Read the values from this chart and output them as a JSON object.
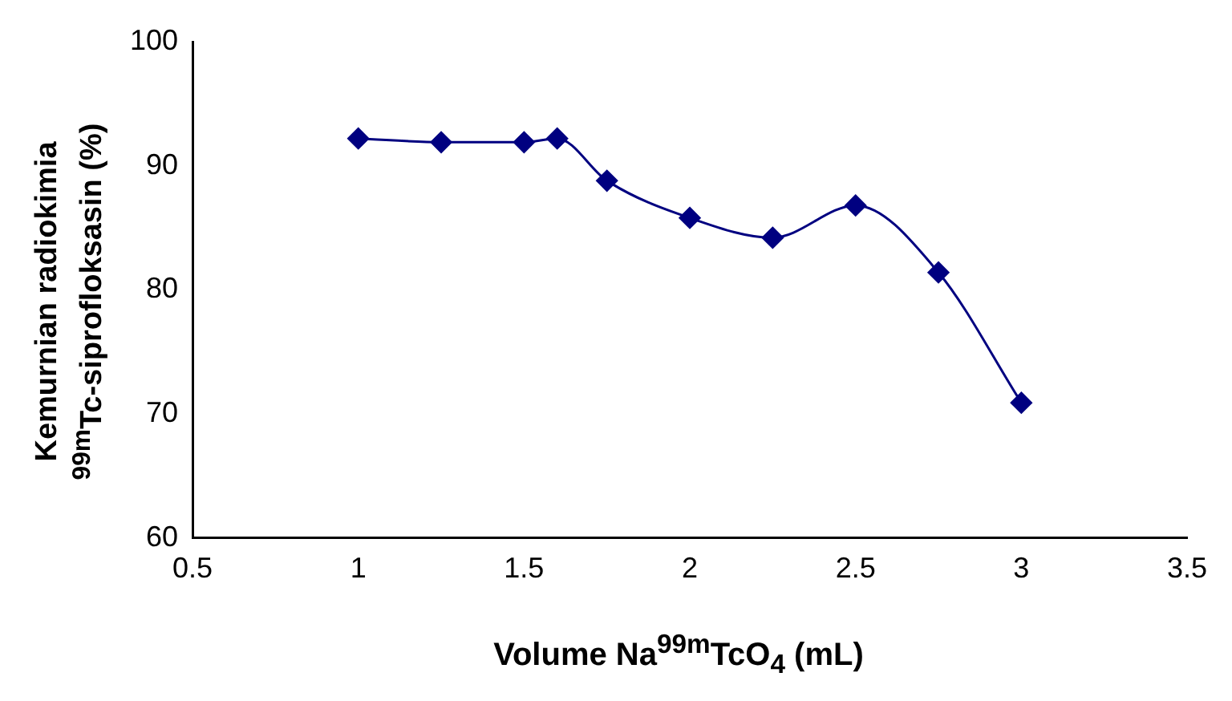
{
  "chart_data": {
    "type": "line",
    "xlabel": "Volume Na$^{99m}$TcO$_{4}$ (mL)",
    "ylabel": "Kemurnian radiokimia\n$^{99m}$Tc-siprofloksasin (%)",
    "x": [
      1,
      1.25,
      1.5,
      1.6,
      1.75,
      2,
      2.25,
      2.5,
      2.75,
      3
    ],
    "series": [
      {
        "color": "#000080",
        "values": [
          92.2,
          91.9,
          91.9,
          92.2,
          88.8,
          85.8,
          84.2,
          86.8,
          81.4,
          70.9
        ]
      }
    ],
    "xlim": [
      0.5,
      3.5
    ],
    "xticks": [
      0.5,
      1,
      1.5,
      2,
      2.5,
      3,
      3.5
    ],
    "ylim": [
      60,
      100
    ],
    "yticks": [
      60,
      70,
      80,
      90,
      100
    ],
    "grid": false,
    "legend": false,
    "marker": "diamond",
    "line_style": "solid"
  }
}
